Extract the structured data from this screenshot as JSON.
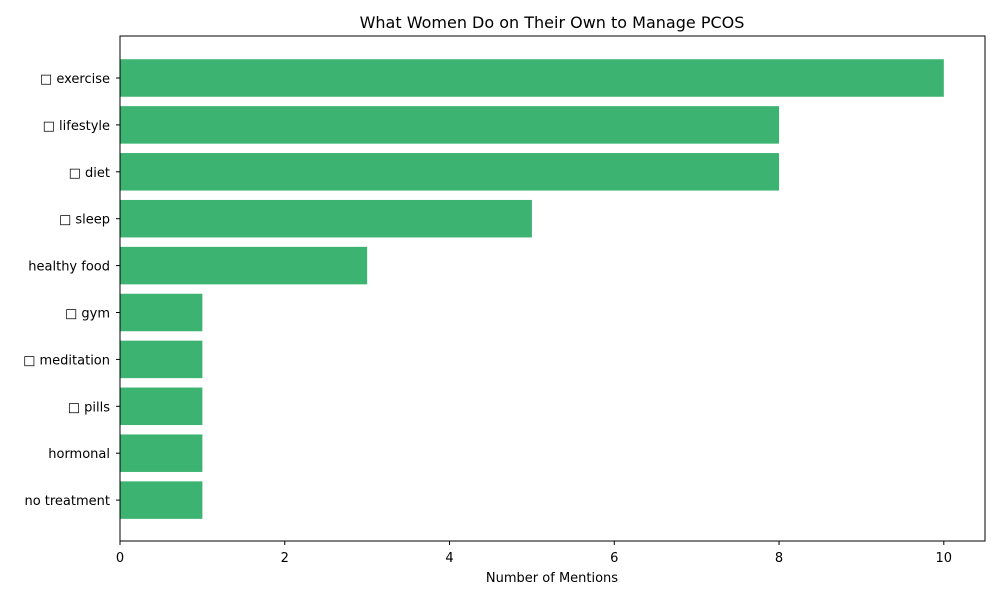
{
  "chart_data": {
    "type": "bar",
    "orientation": "horizontal",
    "title": "What Women Do on Their Own to Manage PCOS",
    "xlabel": "Number of Mentions",
    "ylabel": "",
    "categories": [
      "□ exercise",
      "□ lifestyle",
      "□ diet",
      "□ sleep",
      "healthy food",
      "□ gym",
      "□ meditation",
      "□ pills",
      "hormonal",
      "no treatment"
    ],
    "values": [
      10,
      8,
      8,
      5,
      3,
      1,
      1,
      1,
      1,
      1
    ],
    "xlim": [
      0,
      10.5
    ],
    "xticks": [
      0,
      2,
      4,
      6,
      8,
      10
    ],
    "grid": false,
    "bar_color": "#3cb371"
  }
}
